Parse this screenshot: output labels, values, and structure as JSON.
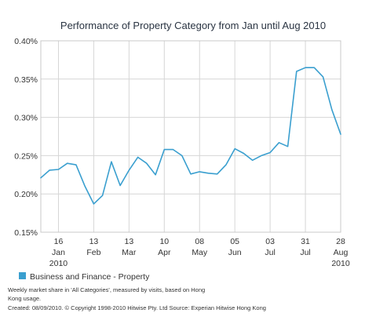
{
  "chart_data": {
    "type": "line",
    "title": "Performance of Property Category from Jan until Aug 2010",
    "y_tick_labels": [
      "0.15%",
      "0.20%",
      "0.25%",
      "0.30%",
      "0.35%",
      "0.40%"
    ],
    "ylim": [
      0.15,
      0.4
    ],
    "y_unit": "%",
    "grid": true,
    "x_ticks": [
      {
        "line1": "16",
        "line2": "Jan",
        "line3": "2010"
      },
      {
        "line1": "13",
        "line2": "Feb",
        "line3": ""
      },
      {
        "line1": "13",
        "line2": "Mar",
        "line3": ""
      },
      {
        "line1": "10",
        "line2": "Apr",
        "line3": ""
      },
      {
        "line1": "08",
        "line2": "May",
        "line3": ""
      },
      {
        "line1": "05",
        "line2": "Jun",
        "line3": ""
      },
      {
        "line1": "03",
        "line2": "Jul",
        "line3": ""
      },
      {
        "line1": "31",
        "line2": "Jul",
        "line3": ""
      },
      {
        "line1": "28",
        "line2": "Aug",
        "line3": "2010"
      }
    ],
    "x_tick_week_index": [
      2,
      6,
      10,
      14,
      18,
      22,
      26,
      30,
      34
    ],
    "series": [
      {
        "name": "Business and Finance - Property",
        "color": "#3a9fcf",
        "values": [
          0.221,
          0.231,
          0.232,
          0.24,
          0.238,
          0.21,
          0.187,
          0.198,
          0.242,
          0.211,
          0.231,
          0.248,
          0.24,
          0.225,
          0.258,
          0.258,
          0.25,
          0.226,
          0.229,
          0.227,
          0.226,
          0.238,
          0.259,
          0.253,
          0.244,
          0.25,
          0.254,
          0.267,
          0.262,
          0.36,
          0.365,
          0.365,
          0.353,
          0.31,
          0.278
        ]
      }
    ],
    "legend_position": "bottom-left"
  },
  "footer": {
    "line1": "Weekly market share in 'All Categories', measured by visits, based on Hong",
    "line2": "Kong usage.",
    "line3": "Created: 08/09/2010. © Copyright 1998-2010 Hitwise Pty. Ltd Source: Experian Hitwise Hong Kong"
  }
}
